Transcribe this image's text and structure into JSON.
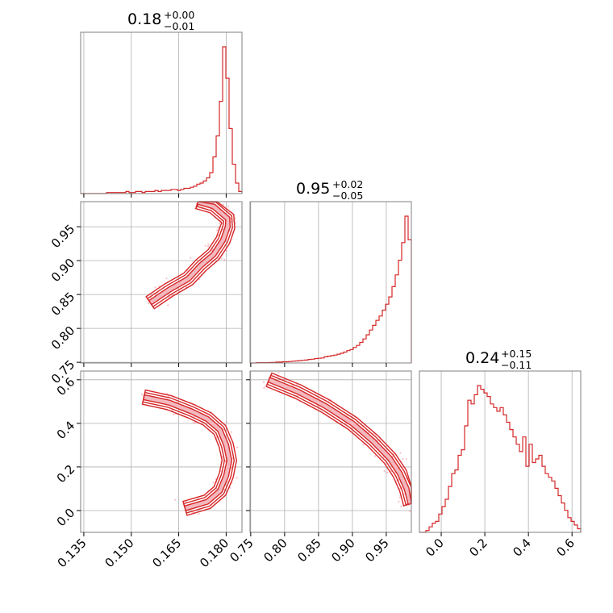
{
  "chart_data": {
    "type": "corner",
    "color": "#d62728",
    "parameters": [
      {
        "median_label": "0.18",
        "plus_label": "+0.00",
        "minus_label": "−0.01",
        "ticks": [
          "0.135",
          "0.150",
          "0.165",
          "0.180"
        ],
        "range": [
          0.134,
          0.185
        ]
      },
      {
        "median_label": "0.95",
        "plus_label": "+0.02",
        "minus_label": "−0.05",
        "ticks": [
          "0.75",
          "0.80",
          "0.85",
          "0.90",
          "0.95"
        ],
        "range": [
          0.749,
          0.987
        ]
      },
      {
        "median_label": "0.24",
        "plus_label": "+0.15",
        "minus_label": "−0.11",
        "ticks": [
          "0.0",
          "0.2",
          "0.4",
          "0.6"
        ],
        "range": [
          -0.1,
          0.64
        ]
      }
    ],
    "histograms": [
      {
        "edges_start": 0.134,
        "edges_end": 0.185,
        "counts": [
          0,
          0,
          0,
          0,
          0,
          0,
          0,
          0,
          1,
          1,
          1,
          1,
          1,
          1,
          2,
          1,
          1,
          2,
          2,
          1,
          2,
          2,
          2,
          3,
          2,
          3,
          3,
          3,
          4,
          4,
          3,
          4,
          5,
          5,
          6,
          7,
          9,
          10,
          12,
          15,
          20,
          35,
          55,
          88,
          140,
          110,
          62,
          28,
          10,
          2
        ]
      },
      {
        "edges_start": 0.749,
        "edges_end": 0.987,
        "counts": [
          0,
          0,
          1,
          1,
          1,
          1,
          2,
          2,
          3,
          3,
          4,
          4,
          5,
          6,
          7,
          8,
          9,
          10,
          12,
          13,
          15,
          16,
          17,
          21,
          23,
          25,
          27,
          30,
          33,
          37,
          42,
          46,
          53,
          60,
          70,
          82,
          96,
          112,
          128,
          145,
          160,
          180,
          200,
          225,
          260,
          300,
          350,
          410,
          500,
          420
        ]
      },
      {
        "edges_start": -0.1,
        "edges_end": 0.64,
        "counts": [
          0,
          0,
          1,
          3,
          5,
          6,
          10,
          14,
          18,
          25,
          32,
          34,
          42,
          45,
          58,
          72,
          70,
          75,
          80,
          78,
          76,
          74,
          70,
          68,
          66,
          68,
          64,
          60,
          56,
          52,
          48,
          44,
          52,
          36,
          48,
          38,
          40,
          42,
          36,
          32,
          30,
          28,
          24,
          20,
          16,
          12,
          8,
          6,
          4,
          2
        ]
      }
    ],
    "pairs": [
      {
        "x_param": 0,
        "y_param": 1,
        "ridge": [
          [
            0.156,
            0.838
          ],
          [
            0.162,
            0.857
          ],
          [
            0.168,
            0.873
          ],
          [
            0.172,
            0.893
          ],
          [
            0.176,
            0.909
          ],
          [
            0.179,
            0.93
          ],
          [
            0.1805,
            0.95
          ],
          [
            0.1805,
            0.962
          ],
          [
            0.176,
            0.98
          ],
          [
            0.171,
            0.987
          ]
        ]
      },
      {
        "x_param": 0,
        "y_param": 2,
        "ridge": [
          [
            0.154,
            0.52
          ],
          [
            0.162,
            0.495
          ],
          [
            0.169,
            0.455
          ],
          [
            0.174,
            0.42
          ],
          [
            0.178,
            0.37
          ],
          [
            0.18,
            0.3
          ],
          [
            0.181,
            0.23
          ],
          [
            0.18,
            0.16
          ],
          [
            0.178,
            0.09
          ],
          [
            0.174,
            0.04
          ],
          [
            0.167,
            0.01
          ]
        ]
      },
      {
        "x_param": 1,
        "y_param": 2,
        "ridge": [
          [
            0.777,
            0.6
          ],
          [
            0.82,
            0.545
          ],
          [
            0.86,
            0.48
          ],
          [
            0.9,
            0.4
          ],
          [
            0.93,
            0.32
          ],
          [
            0.955,
            0.24
          ],
          [
            0.97,
            0.17
          ],
          [
            0.98,
            0.1
          ],
          [
            0.986,
            0.03
          ]
        ]
      }
    ]
  }
}
